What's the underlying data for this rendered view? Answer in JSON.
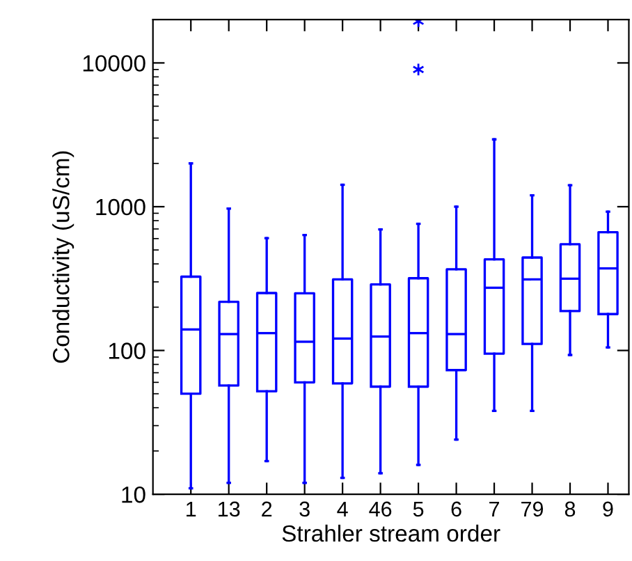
{
  "chart_data": {
    "type": "box",
    "xlabel": "Strahler stream order",
    "ylabel": "Conductivity (uS/cm)",
    "categories": [
      "1",
      "13",
      "2",
      "3",
      "4",
      "46",
      "5",
      "6",
      "7",
      "79",
      "8",
      "9"
    ],
    "log": true,
    "ylim": [
      10,
      20000
    ],
    "yticks": [
      10,
      100,
      1000,
      10000
    ],
    "grid": false,
    "color": "#0000ff",
    "boxes": [
      {
        "low": 11,
        "q1": 50,
        "median": 140,
        "q3": 326,
        "high": 2000
      },
      {
        "low": 12,
        "q1": 57,
        "median": 130,
        "q3": 218,
        "high": 970
      },
      {
        "low": 17,
        "q1": 52,
        "median": 132,
        "q3": 251,
        "high": 604
      },
      {
        "low": 12,
        "q1": 60,
        "median": 115,
        "q3": 250,
        "high": 635
      },
      {
        "low": 13,
        "q1": 59,
        "median": 121,
        "q3": 312,
        "high": 1420
      },
      {
        "low": 14,
        "q1": 56,
        "median": 125,
        "q3": 288,
        "high": 695
      },
      {
        "low": 16,
        "q1": 56,
        "median": 132,
        "q3": 318,
        "high": 760,
        "outliers": [
          9000,
          19500
        ]
      },
      {
        "low": 24,
        "q1": 73,
        "median": 130,
        "q3": 367,
        "high": 1000
      },
      {
        "low": 38,
        "q1": 95,
        "median": 273,
        "q3": 430,
        "high": 2940
      },
      {
        "low": 38,
        "q1": 111,
        "median": 312,
        "q3": 443,
        "high": 1200
      },
      {
        "low": 93,
        "q1": 188,
        "median": 316,
        "q3": 548,
        "high": 1410
      },
      {
        "low": 105,
        "q1": 179,
        "median": 372,
        "q3": 665,
        "high": 923
      }
    ]
  }
}
